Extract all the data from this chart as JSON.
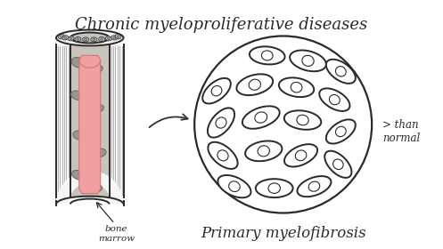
{
  "title": "Chronic myeloproliferative diseases",
  "subtitle": "Primary myelofibrosis",
  "label_bone_marrow": "bone\nmarrow",
  "label_greater": "> than\nnormal",
  "bg_color": "#ffffff",
  "outline_color": "#2a2a2a",
  "bone_outer_fill": "#f5f5f5",
  "bone_inner_fill": "#c8c4bc",
  "red_marrow_fill": "#f0a0a0",
  "red_marrow_top": "#e88888",
  "gray_blob_fill": "#9a9590",
  "gray_blob_edge": "#6a6560",
  "title_fontsize": 13,
  "subtitle_fontsize": 12,
  "label_fontsize": 7.5,
  "arrow_color": "#333333",
  "cell_edge": "#2a2a2a",
  "circle_edge": "#2a2a2a"
}
